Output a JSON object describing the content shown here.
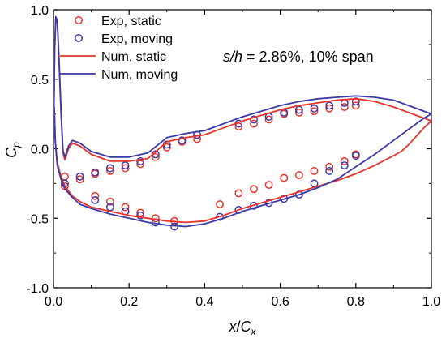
{
  "chart_data": {
    "type": "line",
    "annotation": {
      "text_italic": "s/h",
      "text_rest": " = 2.86%, 10% span"
    },
    "xlabel": {
      "italic1": "x",
      "slash": "/",
      "italic2": "C",
      "sub": "x"
    },
    "ylabel": {
      "italic": "C",
      "sub": "p"
    },
    "xlim": [
      0.0,
      1.0
    ],
    "ylim": [
      -1.0,
      1.0
    ],
    "xticks": [
      "0.0",
      "0.2",
      "0.4",
      "0.6",
      "0.8",
      "1.0"
    ],
    "yticks": [
      "-1.0",
      "-0.5",
      "0.0",
      "0.5",
      "1.0"
    ],
    "grid": false,
    "legend_position": "top-left",
    "colors": {
      "red": "#e8332a",
      "blue": "#3a3aa8"
    },
    "legend": [
      {
        "label": "Exp, static",
        "style": "marker",
        "color": "red"
      },
      {
        "label": "Exp, moving",
        "style": "marker",
        "color": "blue"
      },
      {
        "label": "Num, static",
        "style": "line",
        "color": "red"
      },
      {
        "label": "Num, moving",
        "style": "line",
        "color": "blue"
      }
    ],
    "series": [
      {
        "name": "Exp, static",
        "kind": "scatter",
        "color": "red",
        "points": [
          [
            0.03,
            -0.2
          ],
          [
            0.07,
            -0.22
          ],
          [
            0.11,
            -0.18
          ],
          [
            0.15,
            -0.16
          ],
          [
            0.19,
            -0.14
          ],
          [
            0.23,
            -0.11
          ],
          [
            0.27,
            -0.06
          ],
          [
            0.3,
            0.01
          ],
          [
            0.34,
            0.05
          ],
          [
            0.38,
            0.07
          ],
          [
            0.49,
            0.16
          ],
          [
            0.53,
            0.18
          ],
          [
            0.57,
            0.21
          ],
          [
            0.61,
            0.25
          ],
          [
            0.65,
            0.26
          ],
          [
            0.69,
            0.27
          ],
          [
            0.73,
            0.29
          ],
          [
            0.77,
            0.3
          ],
          [
            0.8,
            0.31
          ],
          [
            0.03,
            -0.27
          ],
          [
            0.11,
            -0.34
          ],
          [
            0.15,
            -0.38
          ],
          [
            0.19,
            -0.42
          ],
          [
            0.23,
            -0.46
          ],
          [
            0.27,
            -0.5
          ],
          [
            0.32,
            -0.52
          ],
          [
            0.44,
            -0.4
          ],
          [
            0.49,
            -0.32
          ],
          [
            0.53,
            -0.29
          ],
          [
            0.57,
            -0.26
          ],
          [
            0.61,
            -0.21
          ],
          [
            0.65,
            -0.19
          ],
          [
            0.69,
            -0.16
          ],
          [
            0.73,
            -0.13
          ],
          [
            0.77,
            -0.09
          ],
          [
            0.8,
            -0.04
          ]
        ]
      },
      {
        "name": "Exp, moving",
        "kind": "scatter",
        "color": "blue",
        "points": [
          [
            0.03,
            -0.25
          ],
          [
            0.07,
            -0.2
          ],
          [
            0.11,
            -0.17
          ],
          [
            0.15,
            -0.14
          ],
          [
            0.19,
            -0.12
          ],
          [
            0.23,
            -0.09
          ],
          [
            0.27,
            -0.04
          ],
          [
            0.3,
            0.03
          ],
          [
            0.34,
            0.06
          ],
          [
            0.38,
            0.1
          ],
          [
            0.49,
            0.18
          ],
          [
            0.53,
            0.21
          ],
          [
            0.57,
            0.23
          ],
          [
            0.61,
            0.26
          ],
          [
            0.65,
            0.28
          ],
          [
            0.69,
            0.29
          ],
          [
            0.73,
            0.31
          ],
          [
            0.77,
            0.33
          ],
          [
            0.8,
            0.34
          ],
          [
            0.11,
            -0.37
          ],
          [
            0.15,
            -0.42
          ],
          [
            0.19,
            -0.45
          ],
          [
            0.23,
            -0.48
          ],
          [
            0.27,
            -0.53
          ],
          [
            0.32,
            -0.56
          ],
          [
            0.44,
            -0.49
          ],
          [
            0.49,
            -0.44
          ],
          [
            0.53,
            -0.41
          ],
          [
            0.57,
            -0.39
          ],
          [
            0.61,
            -0.36
          ],
          [
            0.65,
            -0.33
          ],
          [
            0.69,
            -0.25
          ],
          [
            0.73,
            -0.16
          ],
          [
            0.77,
            -0.12
          ],
          [
            0.8,
            -0.05
          ]
        ]
      },
      {
        "name": "Num, static",
        "kind": "line",
        "color": "red",
        "x": [
          0.0,
          0.003,
          0.006,
          0.01,
          0.015,
          0.02,
          0.025,
          0.03,
          0.04,
          0.05,
          0.07,
          0.1,
          0.15,
          0.2,
          0.25,
          0.3,
          0.35,
          0.4,
          0.45,
          0.5,
          0.55,
          0.6,
          0.65,
          0.7,
          0.75,
          0.8,
          0.85,
          0.9,
          0.95,
          1.0,
          0.98,
          0.96,
          0.94,
          0.92,
          0.9,
          0.85,
          0.8,
          0.75,
          0.7,
          0.65,
          0.6,
          0.55,
          0.5,
          0.45,
          0.4,
          0.35,
          0.3,
          0.25,
          0.2,
          0.15,
          0.1,
          0.07,
          0.05,
          0.03,
          0.02,
          0.01,
          0.005,
          0.002,
          0.0
        ],
        "y": [
          0.0,
          0.7,
          0.93,
          0.9,
          0.6,
          0.25,
          -0.03,
          -0.08,
          0.0,
          0.04,
          0.02,
          -0.04,
          -0.09,
          -0.09,
          -0.07,
          0.05,
          0.08,
          0.1,
          0.15,
          0.2,
          0.24,
          0.28,
          0.31,
          0.33,
          0.35,
          0.36,
          0.34,
          0.3,
          0.25,
          0.2,
          0.15,
          0.09,
          0.03,
          -0.02,
          -0.05,
          -0.12,
          -0.18,
          -0.23,
          -0.27,
          -0.31,
          -0.35,
          -0.39,
          -0.43,
          -0.48,
          -0.52,
          -0.53,
          -0.52,
          -0.5,
          -0.48,
          -0.45,
          -0.42,
          -0.38,
          -0.34,
          -0.27,
          -0.2,
          -0.1,
          0.05,
          0.3,
          0.0
        ]
      },
      {
        "name": "Num, moving",
        "kind": "line",
        "color": "blue",
        "x": [
          0.0,
          0.003,
          0.006,
          0.01,
          0.015,
          0.02,
          0.025,
          0.03,
          0.04,
          0.05,
          0.07,
          0.1,
          0.15,
          0.2,
          0.25,
          0.3,
          0.35,
          0.4,
          0.45,
          0.5,
          0.55,
          0.6,
          0.65,
          0.7,
          0.75,
          0.8,
          0.85,
          0.9,
          0.95,
          1.0,
          0.98,
          0.96,
          0.94,
          0.92,
          0.9,
          0.85,
          0.8,
          0.75,
          0.7,
          0.65,
          0.6,
          0.55,
          0.5,
          0.45,
          0.4,
          0.35,
          0.3,
          0.25,
          0.2,
          0.15,
          0.1,
          0.07,
          0.05,
          0.03,
          0.02,
          0.01,
          0.005,
          0.002,
          0.0
        ],
        "y": [
          0.0,
          0.72,
          0.95,
          0.92,
          0.62,
          0.27,
          -0.01,
          -0.06,
          0.02,
          0.06,
          0.04,
          -0.02,
          -0.06,
          -0.06,
          -0.03,
          0.08,
          0.11,
          0.13,
          0.18,
          0.23,
          0.27,
          0.31,
          0.34,
          0.36,
          0.37,
          0.38,
          0.37,
          0.35,
          0.3,
          0.25,
          0.22,
          0.18,
          0.14,
          0.1,
          0.06,
          -0.04,
          -0.13,
          -0.22,
          -0.28,
          -0.33,
          -0.37,
          -0.41,
          -0.45,
          -0.5,
          -0.54,
          -0.56,
          -0.55,
          -0.53,
          -0.5,
          -0.47,
          -0.43,
          -0.4,
          -0.35,
          -0.29,
          -0.22,
          -0.12,
          0.04,
          0.3,
          0.0
        ]
      }
    ]
  }
}
